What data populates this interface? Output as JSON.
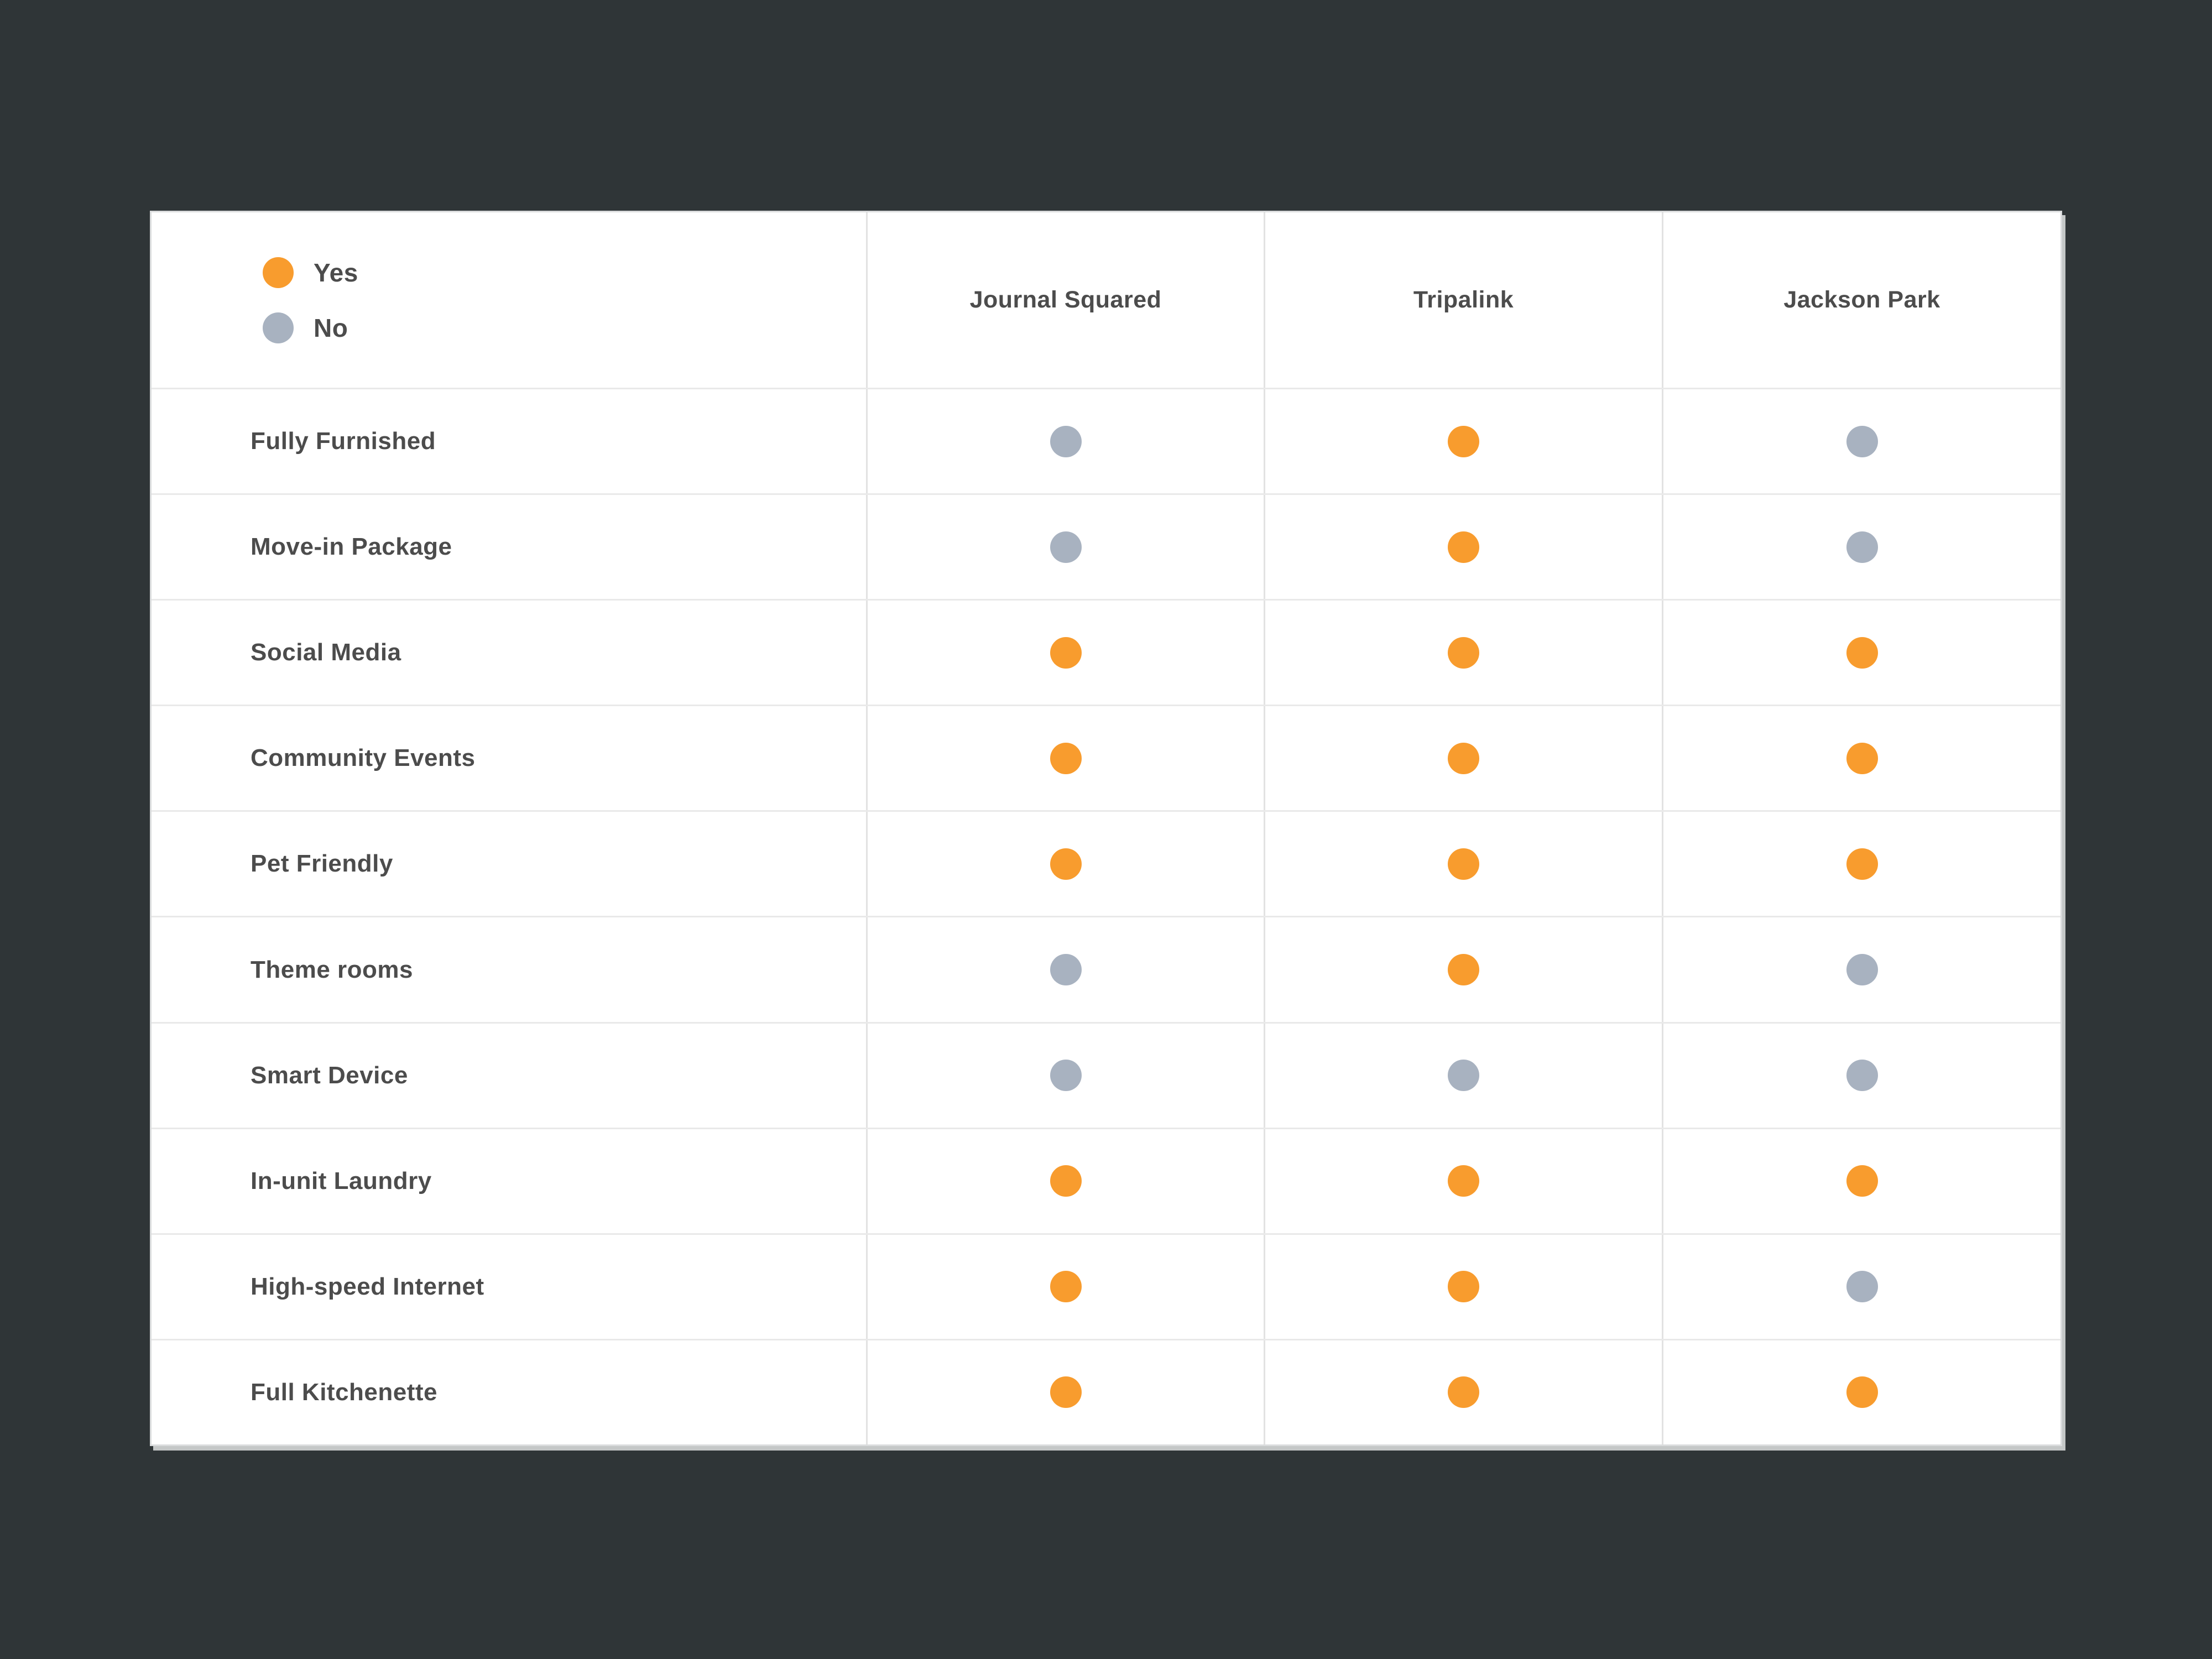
{
  "chart_data": {
    "type": "table",
    "title": "",
    "legend": [
      {
        "key": "yes",
        "label": "Yes",
        "color": "#F89C2E"
      },
      {
        "key": "no",
        "label": "No",
        "color": "#A8B2C0"
      }
    ],
    "legend_position": "top-left",
    "status_colors": {
      "yes": "#F89C2E",
      "no": "#A8B2C0"
    },
    "background_color": "#2F3537",
    "card_color": "#FFFFFF",
    "text_color": "#4C4C4C",
    "columns": [
      "Journal Squared",
      "Tripalink",
      "Jackson Park"
    ],
    "rows": [
      {
        "feature": "Fully Furnished",
        "values": [
          "no",
          "yes",
          "no"
        ]
      },
      {
        "feature": "Move-in Package",
        "values": [
          "no",
          "yes",
          "no"
        ]
      },
      {
        "feature": "Social Media",
        "values": [
          "yes",
          "yes",
          "yes"
        ]
      },
      {
        "feature": "Community Events",
        "values": [
          "yes",
          "yes",
          "yes"
        ]
      },
      {
        "feature": "Pet Friendly",
        "values": [
          "yes",
          "yes",
          "yes"
        ]
      },
      {
        "feature": "Theme rooms",
        "values": [
          "no",
          "yes",
          "no"
        ]
      },
      {
        "feature": "Smart Device",
        "values": [
          "no",
          "no",
          "no"
        ]
      },
      {
        "feature": "In-unit Laundry",
        "values": [
          "yes",
          "yes",
          "yes"
        ]
      },
      {
        "feature": "High-speed Internet",
        "values": [
          "yes",
          "yes",
          "no"
        ]
      },
      {
        "feature": "Full Kitchenette",
        "values": [
          "yes",
          "yes",
          "yes"
        ]
      }
    ]
  }
}
